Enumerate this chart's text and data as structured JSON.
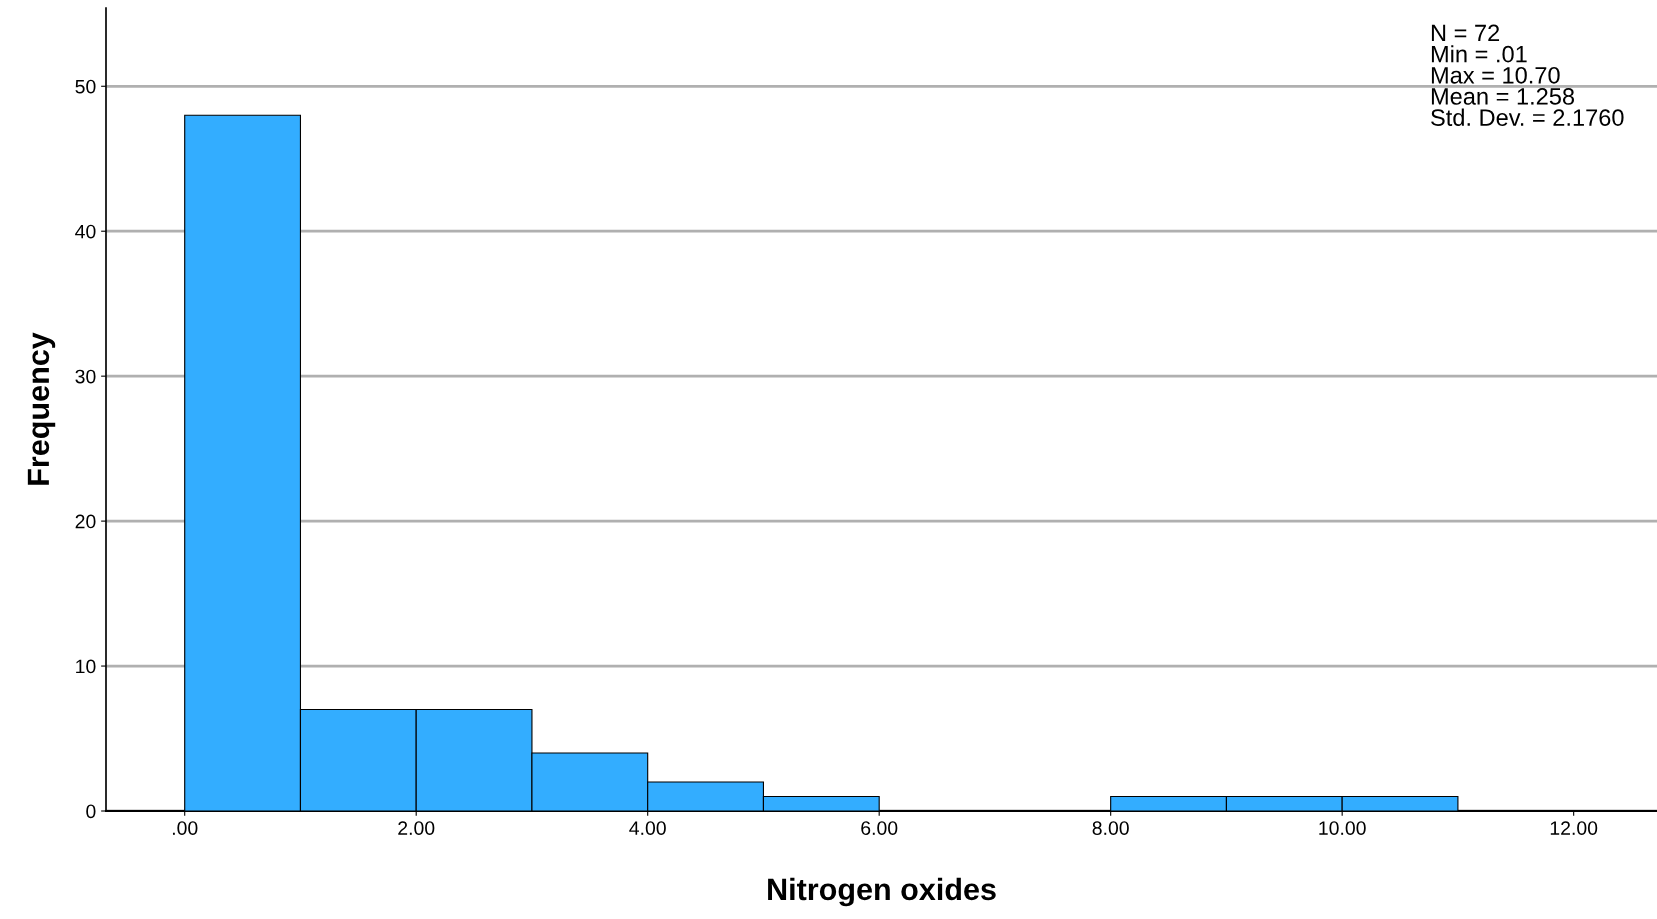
{
  "chart_data": {
    "type": "histogram",
    "xlabel": "Nitrogen oxides",
    "ylabel": "Frequency",
    "bins": [
      0,
      1,
      2,
      3,
      4,
      5,
      6,
      7,
      8,
      9,
      10,
      11
    ],
    "values": [
      48,
      7,
      7,
      4,
      2,
      1,
      0,
      0,
      1,
      1,
      1
    ],
    "color": "#33adff",
    "xlim": [
      -0.68,
      12.72
    ],
    "ylim": [
      0,
      55.4
    ],
    "xticks": [
      {
        "value": 0,
        "label": ".00"
      },
      {
        "value": 2,
        "label": "2.00"
      },
      {
        "value": 4,
        "label": "4.00"
      },
      {
        "value": 6,
        "label": "6.00"
      },
      {
        "value": 8,
        "label": "8.00"
      },
      {
        "value": 10,
        "label": "10.00"
      },
      {
        "value": 12,
        "label": "12.00"
      }
    ],
    "yticks": [
      0,
      10,
      20,
      30,
      40,
      50
    ],
    "grid": "y",
    "annotations": [
      "N = 72\nMin = .01\nMax = 10.70\nMean = 1.258\nStd. Dev. = 2.1760"
    ]
  }
}
